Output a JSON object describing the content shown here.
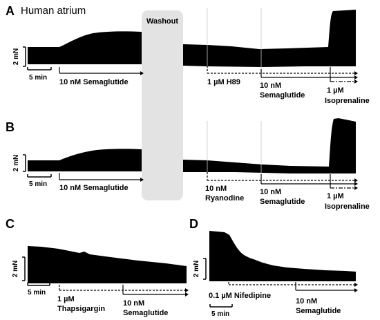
{
  "figure_title": "Human atrium",
  "chart_data": [
    {
      "panel": "A",
      "type": "area",
      "title": "",
      "washout_label": "Washout",
      "scale_bars": {
        "y_label": "2 mN",
        "x_label": "5 min"
      },
      "treatments": [
        {
          "label": "10 nM Semaglutide",
          "line": "solid"
        },
        {
          "label": "1 µM H89",
          "line": "dashed"
        },
        {
          "label": "10 nM\nSemaglutide",
          "line": "solid"
        },
        {
          "label": "1 µM\nIsoprenaline",
          "line": "dashdot"
        }
      ]
    },
    {
      "panel": "B",
      "type": "area",
      "title": "",
      "scale_bars": {
        "y_label": "2 mN",
        "x_label": "5 min"
      },
      "treatments": [
        {
          "label": "10 nM Semaglutide",
          "line": "solid"
        },
        {
          "label": "10 nM\nRyanodine",
          "line": "dashed"
        },
        {
          "label": "10 nM\nSemaglutide",
          "line": "solid"
        },
        {
          "label": "1 µM\nIsoprenaline",
          "line": "dashdot"
        }
      ]
    },
    {
      "panel": "C",
      "type": "area",
      "title": "",
      "scale_bars": {
        "y_label": "2 mN",
        "x_label": "5 min"
      },
      "treatments": [
        {
          "label": "1 µM\nThapsigargin",
          "line": "dashed"
        },
        {
          "label": "10 nM\nSemaglutide",
          "line": "solid"
        }
      ]
    },
    {
      "panel": "D",
      "type": "area",
      "title": "",
      "scale_bars": {
        "y_label": "2 mN",
        "x_label": "5 min"
      },
      "treatments": [
        {
          "label": "0.1 µM Nifedipine",
          "line": "dashed"
        },
        {
          "label": "10 nM\nSemaglutide",
          "line": "solid"
        }
      ]
    }
  ]
}
